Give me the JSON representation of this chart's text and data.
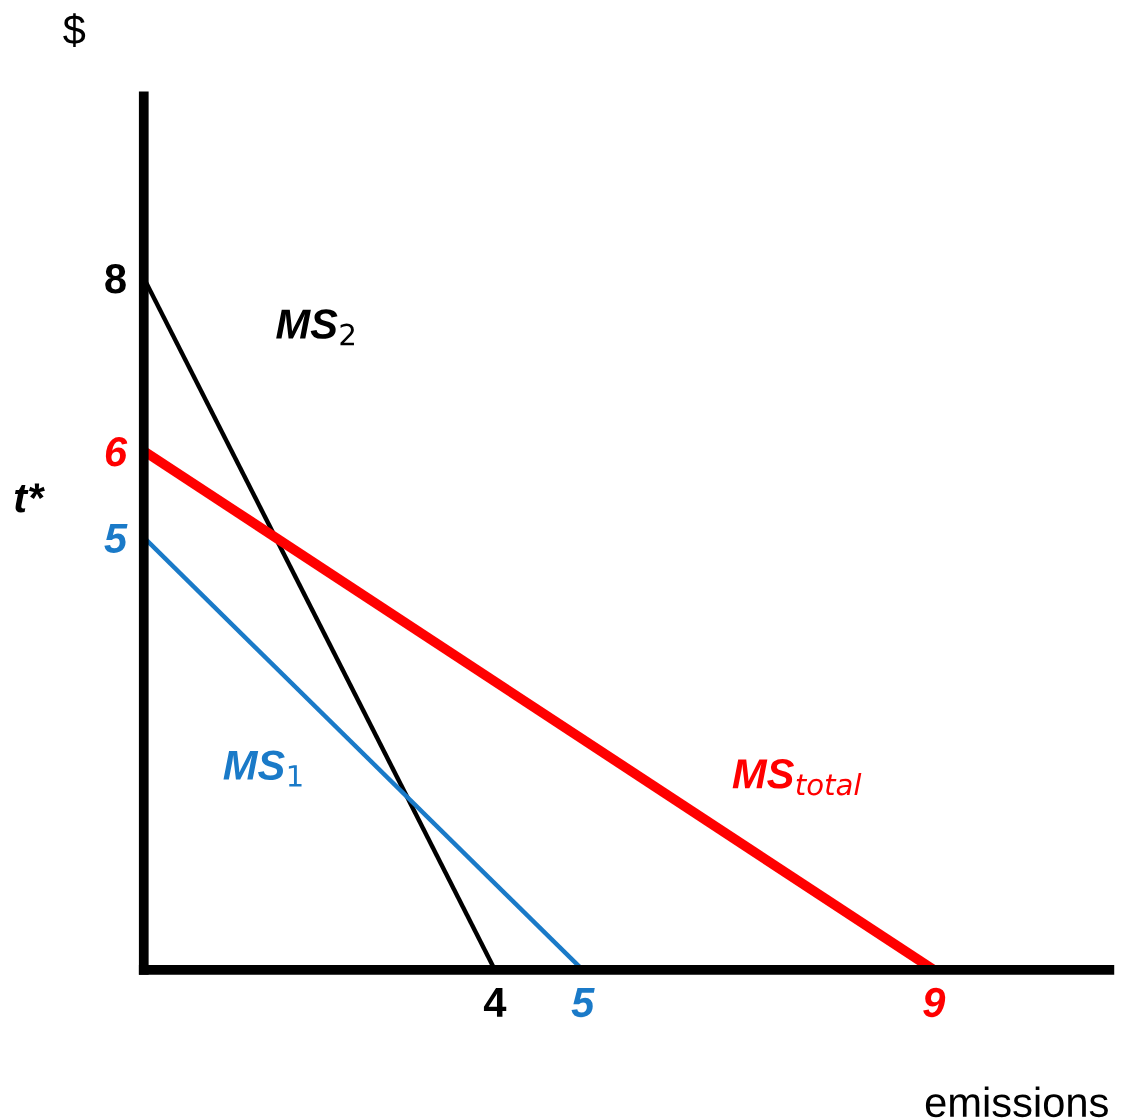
{
  "chart_data": {
    "type": "line",
    "xlabel": "emissions",
    "ylabel": "$",
    "xlim": [
      0,
      11
    ],
    "ylim": [
      0,
      10.1
    ],
    "xticks": [
      4,
      5,
      9
    ],
    "yticks": [
      5,
      6,
      8
    ],
    "series": [
      {
        "name": "MS$_{2}$",
        "color": "#000000",
        "x": [
          0,
          4
        ],
        "values": [
          8,
          0
        ]
      },
      {
        "name": "MS$_{1}$",
        "color": "#1a7ac8",
        "x": [
          0,
          5
        ],
        "values": [
          5,
          0
        ]
      },
      {
        "name": "MS$_{total}$",
        "color": "#ff0000",
        "x": [
          0,
          9
        ],
        "values": [
          6,
          0
        ]
      }
    ],
    "annotations": [
      {
        "text": "t*",
        "x": 0,
        "y": 6
      }
    ],
    "grid": false,
    "legend": false,
    "marker": "none",
    "line_style": "solid"
  }
}
